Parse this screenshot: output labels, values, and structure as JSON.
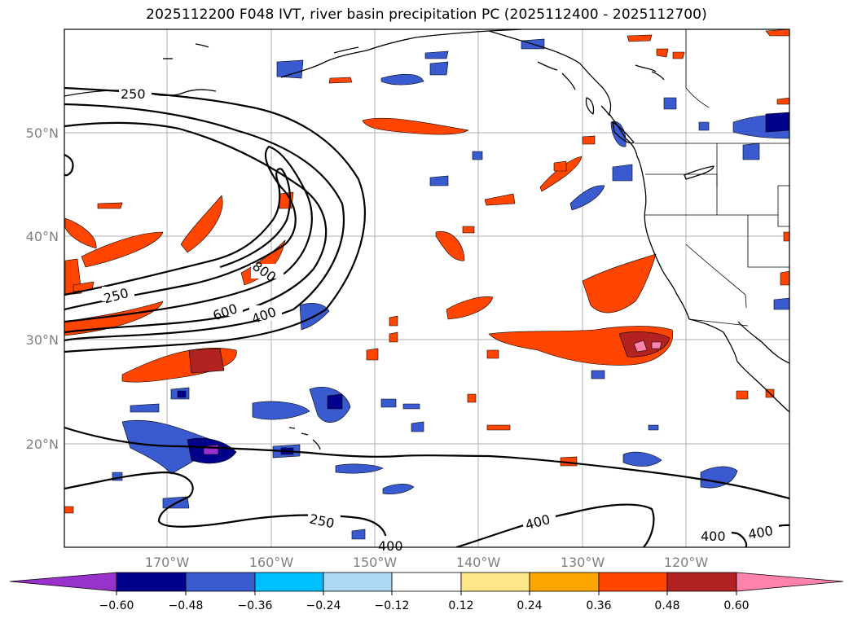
{
  "title": "2025112200 F048 IVT, river basin precipitation PC (2025112400 - 2025112700)",
  "map": {
    "lat_ticks": [
      "50°N",
      "40°N",
      "30°N",
      "20°N"
    ],
    "lon_ticks": [
      "170°W",
      "160°W",
      "150°W",
      "140°W",
      "130°W",
      "120°W"
    ]
  },
  "contour_labels": [
    "250",
    "250",
    "600",
    "800",
    "400",
    "250",
    "400",
    "400",
    "400",
    "400"
  ],
  "colorbar": {
    "ticks": [
      "−0.60",
      "−0.48",
      "−0.36",
      "−0.24",
      "−0.12",
      "0.12",
      "0.24",
      "0.36",
      "0.48",
      "0.60"
    ],
    "colors": [
      "#9932cc",
      "#00008b",
      "#3a5bd0",
      "#00bfff",
      "#add8f6",
      "#ffffff",
      "#fde68a",
      "#ffa500",
      "#ff4500",
      "#b22222",
      "#ff82ab"
    ]
  }
}
